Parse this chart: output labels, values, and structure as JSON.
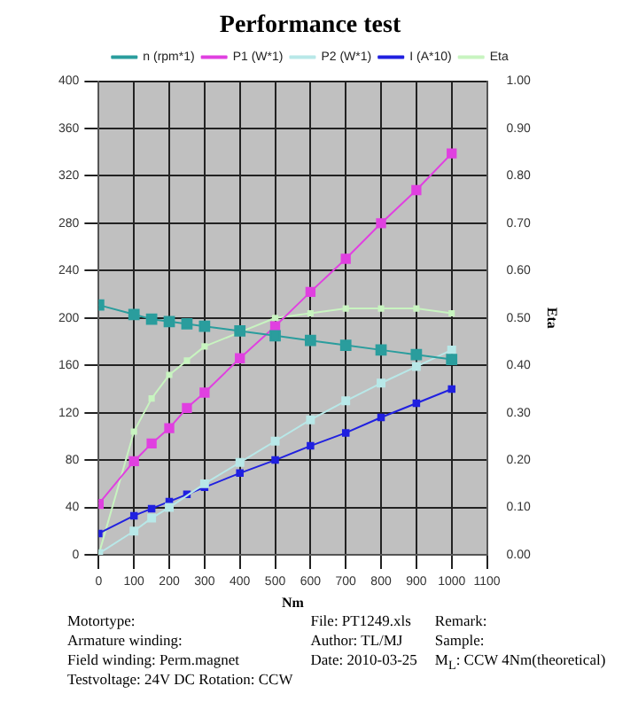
{
  "chart_data": {
    "type": "line",
    "title": "Performance test",
    "xlabel": "Nm",
    "y2label": "Eta",
    "x": [
      0,
      100,
      150,
      200,
      250,
      300,
      400,
      500,
      600,
      700,
      800,
      900,
      1000
    ],
    "series": [
      {
        "name": "n (rpm*1)",
        "color": "#2a9d9d",
        "values": [
          211,
          203,
          199,
          197,
          195,
          193,
          189,
          185,
          181,
          177,
          173,
          169,
          165
        ]
      },
      {
        "name": "P1 (W*1)",
        "color": "#e040e0",
        "values": [
          43,
          79,
          94,
          107,
          124,
          137,
          166,
          193,
          222,
          250,
          280,
          308,
          339
        ]
      },
      {
        "name": "P2 (W*1)",
        "color": "#b8e8e8",
        "values": [
          1,
          20,
          31,
          40,
          null,
          60,
          78,
          96,
          114,
          130,
          145,
          159,
          173
        ]
      },
      {
        "name": "I (A*10)",
        "color": "#2020e0",
        "values": [
          18,
          33,
          39,
          45,
          51,
          57,
          69,
          80,
          92,
          103,
          116,
          128,
          140
        ]
      },
      {
        "name": "Eta",
        "color": "#c8f4c0",
        "axis": "y2",
        "values": [
          0,
          0.26,
          0.33,
          0.38,
          0.41,
          0.44,
          0.47,
          0.5,
          0.51,
          0.52,
          0.52,
          0.52,
          0.51
        ]
      }
    ],
    "xlim": [
      0,
      1100
    ],
    "xticks": [
      0,
      100,
      200,
      300,
      400,
      500,
      600,
      700,
      800,
      900,
      1000,
      1100
    ],
    "ylim": [
      0,
      400
    ],
    "yticks": [
      0,
      40,
      80,
      120,
      160,
      200,
      240,
      280,
      320,
      360,
      400
    ],
    "y2lim": [
      0,
      1
    ],
    "y2ticks": [
      {
        "value": 0,
        "label": "0.00"
      },
      {
        "value": 0.1,
        "label": "0.10"
      },
      {
        "value": 0.2,
        "label": "0.20"
      },
      {
        "value": 0.3,
        "label": "0.30"
      },
      {
        "value": 0.4,
        "label": "0.40"
      },
      {
        "value": 0.5,
        "label": "0.50"
      },
      {
        "value": 0.6,
        "label": "0.60"
      },
      {
        "value": 0.7,
        "label": "0.70"
      },
      {
        "value": 0.8,
        "label": "0.80"
      },
      {
        "value": 0.9,
        "label": "0.90"
      },
      {
        "value": 1,
        "label": "1.00"
      }
    ],
    "grid": true,
    "legend": "top",
    "marker": "square",
    "line_style": "solid",
    "annotations": [
      "Motortype:",
      "Armature winding:",
      "Field winding: Perm.magnet",
      "Testvoltage: 24V DC Rotation: CCW",
      "File: PT1249.xls",
      "Author: TL/MJ",
      "Date: 2010-03-25",
      "Remark:",
      "Sample:",
      "M$_{L}$: CCW 4Nm(theoretical)"
    ]
  }
}
